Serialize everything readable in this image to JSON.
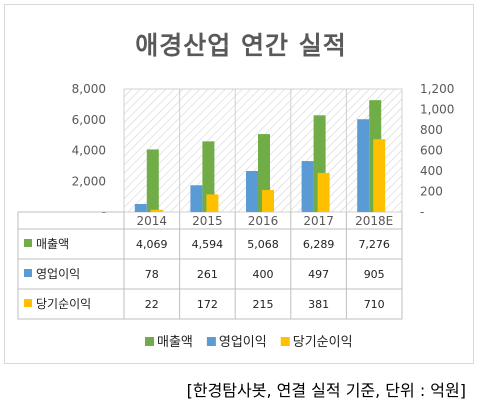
{
  "title": "애경산업 연간 실적",
  "source_note": "[한경탐사봇, 연결 실적 기준, 단위 : 억원]",
  "chart_data": {
    "type": "bar",
    "title": "애경산업 연간 실적",
    "categories": [
      "2014",
      "2015",
      "2016",
      "2017",
      "2018E"
    ],
    "series": [
      {
        "name": "매출액",
        "axis": "left",
        "color": "#70ad47",
        "values": [
          4069,
          4594,
          5068,
          6289,
          7276
        ]
      },
      {
        "name": "영업이익",
        "axis": "right",
        "color": "#5b9bd5",
        "values": [
          78,
          261,
          400,
          497,
          905
        ]
      },
      {
        "name": "당기순이익",
        "axis": "right",
        "color": "#ffc000",
        "values": [
          22,
          172,
          215,
          381,
          710
        ]
      }
    ],
    "y_left": {
      "min": 0,
      "max": 8000,
      "ticks": [
        "-",
        "2,000",
        "4,000",
        "6,000",
        "8,000"
      ]
    },
    "y_right": {
      "min": 0,
      "max": 1200,
      "ticks": [
        "-",
        "200",
        "400",
        "600",
        "800",
        "1,000",
        "1,200"
      ]
    },
    "data_table": [
      [
        "4,069",
        "4,594",
        "5,068",
        "6,289",
        "7,276"
      ],
      [
        "78",
        "261",
        "400",
        "497",
        "905"
      ],
      [
        "22",
        "172",
        "215",
        "381",
        "710"
      ]
    ],
    "legend_position": "bottom",
    "plot_area_pattern": "diagonal-hatch"
  }
}
